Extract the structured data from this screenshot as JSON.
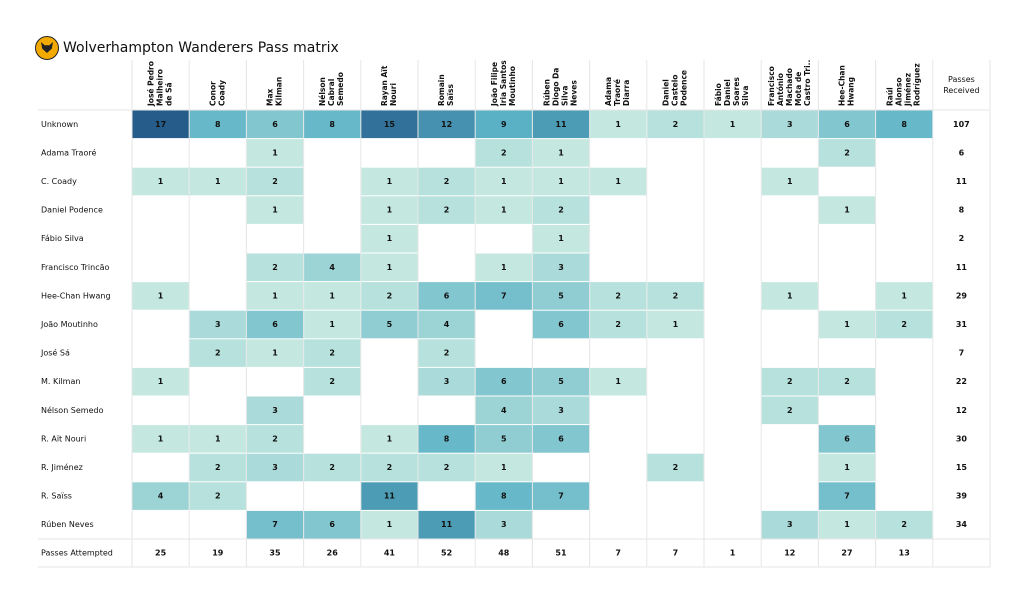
{
  "title": "Wolverhampton Wanderers Pass matrix",
  "logo": "wolves-logo",
  "colors": {
    "min": "#c4e8df",
    "mid": "#5ab1c5",
    "max": "#255c8a",
    "grid": "#e6e6e6"
  },
  "chart_data": {
    "type": "heatmap",
    "title": "Wolverhampton Wanderers Pass matrix",
    "columns": [
      [
        "José Pedro",
        "Malheiro",
        "de Sá"
      ],
      [
        "Conor",
        "Coady"
      ],
      [
        "Max",
        "Kilman"
      ],
      [
        "Nélson",
        "Cabral",
        "Semedo"
      ],
      [
        "Rayan Aït",
        "Nouri"
      ],
      [
        "Romain",
        "Saïss"
      ],
      [
        "João Filipe",
        "Iria Santos",
        "Moutinho"
      ],
      [
        "Rúben",
        "Diogo Da",
        "Silva",
        "Neves"
      ],
      [
        "Adama",
        "Traoré",
        "Diarra"
      ],
      [
        "Daniel",
        "Castelo",
        "Podence"
      ],
      [
        "Fábio",
        "Daniel",
        "Soares",
        "Silva"
      ],
      [
        "Francisco",
        "António",
        "Machado",
        "Mota de",
        "Castro Tri.."
      ],
      [
        "Hee-Chan",
        "Hwang"
      ],
      [
        "Raúl",
        "Alonso",
        "Jiménez",
        "Rodríguez"
      ]
    ],
    "total_column_label": [
      "Passes",
      "Received"
    ],
    "rows": [
      "Unknown",
      "Adama Traoré",
      "C. Coady",
      "Daniel Podence",
      "Fábio Silva",
      "Francisco Trincão",
      "Hee-Chan Hwang",
      "João Moutinho",
      "José Sá",
      "M. Kilman",
      "Nélson Semedo",
      "R. Aït Nouri",
      "R. Jiménez",
      "R. Saïss",
      "Rúben Neves"
    ],
    "values": [
      [
        17,
        8,
        6,
        8,
        15,
        12,
        9,
        11,
        1,
        2,
        1,
        3,
        6,
        8
      ],
      [
        null,
        null,
        1,
        null,
        null,
        null,
        2,
        1,
        null,
        null,
        null,
        null,
        2,
        null
      ],
      [
        1,
        1,
        2,
        null,
        1,
        2,
        1,
        1,
        1,
        null,
        null,
        1,
        null,
        null
      ],
      [
        null,
        null,
        1,
        null,
        1,
        2,
        1,
        2,
        null,
        null,
        null,
        null,
        1,
        null
      ],
      [
        null,
        null,
        null,
        null,
        1,
        null,
        null,
        1,
        null,
        null,
        null,
        null,
        null,
        null
      ],
      [
        null,
        null,
        2,
        4,
        1,
        null,
        1,
        3,
        null,
        null,
        null,
        null,
        null,
        null
      ],
      [
        1,
        null,
        1,
        1,
        2,
        6,
        7,
        5,
        2,
        2,
        null,
        1,
        null,
        1
      ],
      [
        null,
        3,
        6,
        1,
        5,
        4,
        null,
        6,
        2,
        1,
        null,
        null,
        1,
        2
      ],
      [
        null,
        2,
        1,
        2,
        null,
        2,
        null,
        null,
        null,
        null,
        null,
        null,
        null,
        null
      ],
      [
        1,
        null,
        null,
        2,
        null,
        3,
        6,
        5,
        1,
        null,
        null,
        2,
        2,
        null
      ],
      [
        null,
        null,
        3,
        null,
        null,
        null,
        4,
        3,
        null,
        null,
        null,
        2,
        null,
        null
      ],
      [
        1,
        1,
        2,
        null,
        1,
        8,
        5,
        6,
        null,
        null,
        null,
        null,
        6,
        null
      ],
      [
        null,
        2,
        3,
        2,
        2,
        2,
        1,
        null,
        null,
        2,
        null,
        null,
        1,
        null
      ],
      [
        4,
        2,
        null,
        null,
        11,
        null,
        8,
        7,
        null,
        null,
        null,
        null,
        7,
        null
      ],
      [
        null,
        null,
        7,
        6,
        1,
        11,
        3,
        null,
        null,
        null,
        null,
        3,
        1,
        2
      ]
    ],
    "passes_received": [
      107,
      6,
      11,
      8,
      2,
      11,
      29,
      31,
      7,
      22,
      12,
      30,
      15,
      39,
      34
    ],
    "passes_attempted_label": "Passes Attempted",
    "passes_attempted": [
      25,
      19,
      35,
      26,
      41,
      52,
      48,
      51,
      7,
      7,
      1,
      12,
      27,
      13
    ]
  }
}
